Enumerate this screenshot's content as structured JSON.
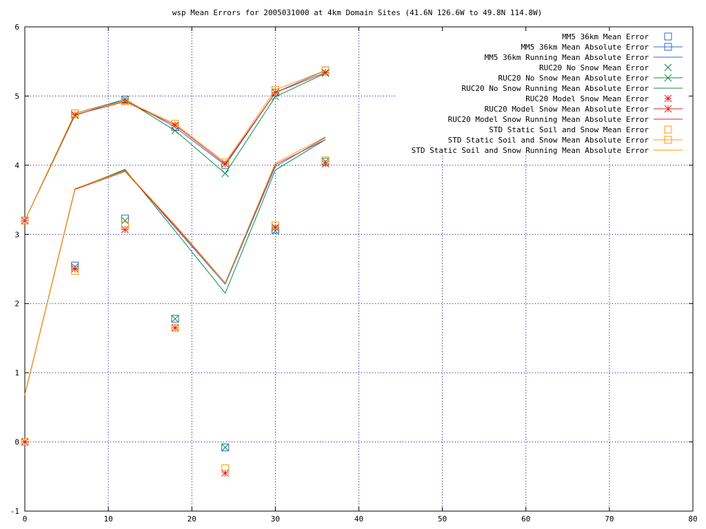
{
  "chart_data": {
    "type": "line",
    "title": "wsp Mean Errors for 2005031000 at 4km Domain Sites (41.6N 126.6W to 49.8N 114.8W)",
    "xlabel": "",
    "ylabel": "",
    "xlim": [
      0,
      80
    ],
    "ylim": [
      -1,
      6
    ],
    "xticks": [
      0,
      10,
      20,
      30,
      40,
      50,
      60,
      70,
      80
    ],
    "yticks": [
      -1,
      0,
      1,
      2,
      3,
      4,
      5,
      6
    ],
    "grid": true,
    "legend_position": "top-right",
    "x": [
      0,
      6,
      12,
      18,
      24,
      30,
      36
    ],
    "series": [
      {
        "name": "MM5 36km Mean Error",
        "style": "points",
        "marker": "square",
        "color": "#3366cc",
        "values": [
          0.0,
          2.55,
          3.23,
          1.78,
          -0.08,
          3.07,
          4.05
        ]
      },
      {
        "name": "MM5 36km Mean Absolute Error",
        "style": "linespoints",
        "marker": "square",
        "color": "#3366cc",
        "values": [
          3.2,
          4.75,
          4.95,
          4.55,
          4.0,
          5.05,
          5.37
        ]
      },
      {
        "name": "MM5 36km Running Mean Absolute Error",
        "style": "line",
        "marker": "none",
        "color": "#3366cc",
        "values": [
          0.68,
          3.66,
          3.93,
          3.1,
          2.28,
          3.98,
          4.4
        ]
      },
      {
        "name": "RUC20 No Snow Mean Error",
        "style": "points",
        "marker": "x",
        "color": "#118844",
        "values": [
          0.0,
          2.53,
          3.2,
          1.78,
          -0.08,
          3.05,
          4.05
        ]
      },
      {
        "name": "RUC20 No Snow Mean Absolute Error",
        "style": "linespoints",
        "marker": "x",
        "color": "#118844",
        "values": [
          3.2,
          4.72,
          4.95,
          4.5,
          3.88,
          4.99,
          5.33
        ]
      },
      {
        "name": "RUC20 No Snow Running Mean Absolute Error",
        "style": "line",
        "marker": "none",
        "color": "#118844",
        "values": [
          0.68,
          3.65,
          3.94,
          3.05,
          2.15,
          3.93,
          4.37
        ]
      },
      {
        "name": "RUC20 Model Snow Mean Error",
        "style": "points",
        "marker": "star",
        "color": "#dd2222",
        "values": [
          0.0,
          2.5,
          3.07,
          1.65,
          -0.45,
          3.1,
          4.02
        ]
      },
      {
        "name": "RUC20 Model Snow Mean Absolute Error",
        "style": "linespoints",
        "marker": "star",
        "color": "#dd2222",
        "values": [
          3.2,
          4.73,
          4.92,
          4.58,
          4.02,
          5.05,
          5.34
        ]
      },
      {
        "name": "RUC20 Model Snow Running Mean Absolute Error",
        "style": "line",
        "marker": "none",
        "color": "#dd2222",
        "values": [
          0.68,
          3.65,
          3.91,
          3.12,
          2.3,
          4.01,
          4.37
        ]
      },
      {
        "name": "STD Static Soil and Snow Mean Error",
        "style": "points",
        "marker": "square",
        "color": "#ff9900",
        "values": [
          0.0,
          2.47,
          3.13,
          1.65,
          -0.38,
          3.13,
          4.07
        ]
      },
      {
        "name": "STD Static Soil and Snow Mean Absolute Error",
        "style": "linespoints",
        "marker": "square",
        "color": "#ff9900",
        "values": [
          3.2,
          4.75,
          4.93,
          4.6,
          4.04,
          5.09,
          5.37
        ]
      },
      {
        "name": "STD Static Soil and Snow Running Mean Absolute Error",
        "style": "line",
        "marker": "none",
        "color": "#ff9900",
        "values": [
          0.68,
          3.66,
          3.92,
          3.14,
          2.3,
          4.03,
          4.41
        ]
      }
    ]
  }
}
